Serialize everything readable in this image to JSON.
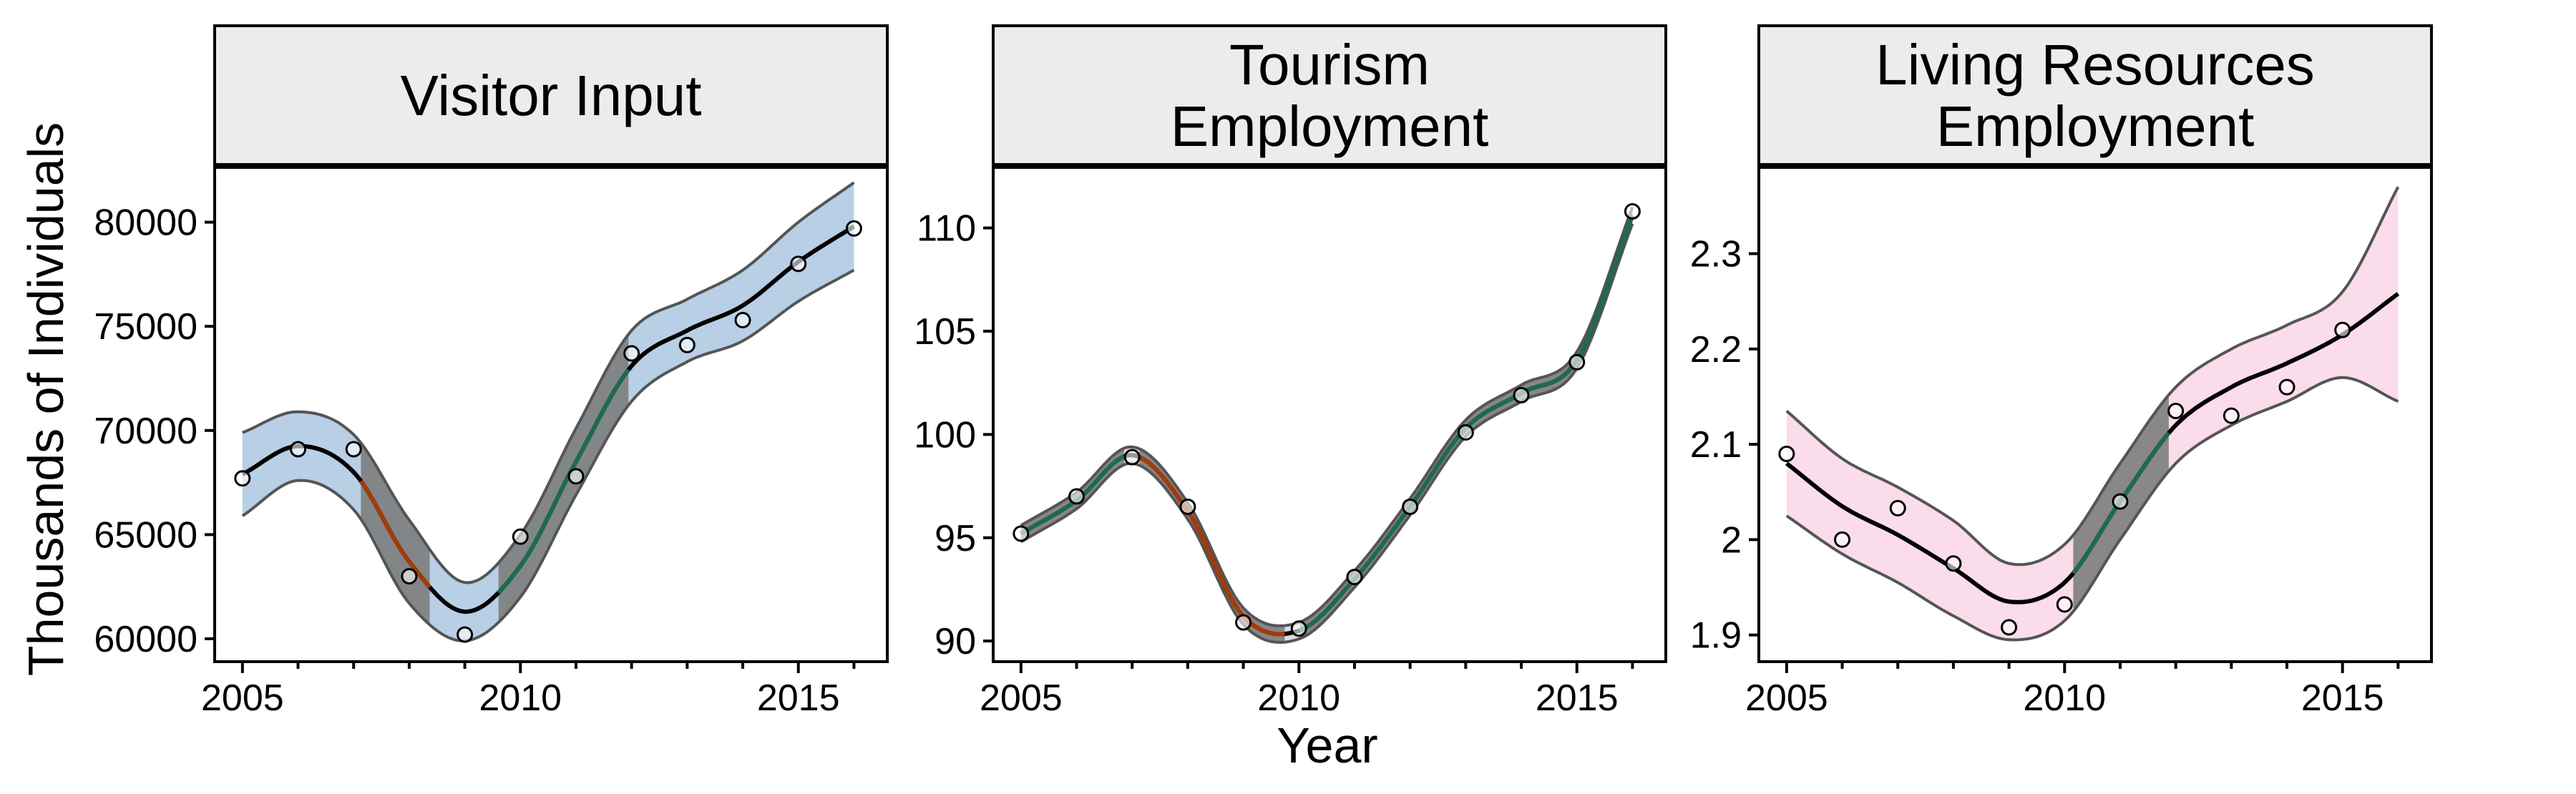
{
  "figure": {
    "xlabel": "Year",
    "ylabel": "Thousands of Individuals"
  },
  "chart_data": [
    {
      "type": "line",
      "title": "Visitor Input",
      "title_lines": [
        "Visitor Input"
      ],
      "band_color": "#b8cfe6",
      "decrease_color": "#a33b0b",
      "increase_color": "#1e6b4e",
      "xlim": [
        2004.5,
        2016.6
      ],
      "ylim": [
        58900,
        82700
      ],
      "xticks": [
        2005,
        2010,
        2015
      ],
      "yticks": [
        60000,
        65000,
        70000,
        75000,
        80000
      ],
      "x": [
        2005,
        2006,
        2007,
        2008,
        2009,
        2010,
        2011,
        2012,
        2013,
        2014,
        2015,
        2016
      ],
      "observed": [
        67700,
        69100,
        69100,
        63000,
        60200,
        64900,
        67800,
        73700,
        74100,
        75300,
        78000,
        79700
      ],
      "series": [
        {
          "name": "fit",
          "values": [
            67900,
            69250,
            68000,
            63700,
            61300,
            63500,
            68500,
            73100,
            74800,
            76000,
            78100,
            79800
          ]
        },
        {
          "name": "lower",
          "values": [
            65900,
            67600,
            66200,
            61700,
            59900,
            62000,
            66900,
            71400,
            73300,
            74300,
            76200,
            77700
          ]
        },
        {
          "name": "upper",
          "values": [
            69900,
            70900,
            69800,
            65700,
            62700,
            65000,
            70100,
            74800,
            76300,
            77700,
            80000,
            81900
          ]
        }
      ],
      "decrease_periods": [
        [
          2007.1,
          2008.4
        ]
      ],
      "increase_periods": [
        [
          2009.6,
          2012.0
        ]
      ]
    },
    {
      "type": "line",
      "title": "Tourism Employment",
      "title_lines": [
        "Tourism",
        "Employment"
      ],
      "band_color": "#dedede",
      "decrease_color": "#a33b0b",
      "increase_color": "#1e6b4e",
      "xlim": [
        2004.5,
        2016.6
      ],
      "ylim": [
        89,
        113
      ],
      "xticks": [
        2005,
        2010,
        2015
      ],
      "yticks": [
        90,
        95,
        100,
        105,
        110
      ],
      "x": [
        2005,
        2006,
        2007,
        2008,
        2009,
        2010,
        2011,
        2012,
        2013,
        2014,
        2015,
        2016
      ],
      "observed": [
        95.2,
        97.0,
        98.9,
        96.5,
        90.9,
        90.6,
        93.1,
        96.5,
        100.1,
        101.9,
        103.5,
        110.8
      ],
      "series": [
        {
          "name": "fit",
          "values": [
            95.2,
            96.8,
            99.0,
            96.3,
            91.2,
            90.5,
            93.0,
            96.5,
            100.3,
            102.0,
            103.6,
            110.6
          ]
        },
        {
          "name": "lower",
          "values": [
            94.8,
            96.4,
            98.6,
            95.9,
            90.8,
            90.1,
            92.6,
            96.1,
            99.9,
            101.6,
            103.2,
            110.2
          ]
        },
        {
          "name": "upper",
          "values": [
            95.6,
            97.2,
            99.4,
            96.7,
            91.6,
            90.9,
            93.4,
            96.9,
            100.7,
            102.4,
            104.0,
            111.0
          ]
        }
      ],
      "decrease_periods": [
        [
          2007.1,
          2009.8
        ]
      ],
      "increase_periods": [
        [
          2004.9,
          2006.9
        ],
        [
          2010.0,
          2016.1
        ]
      ]
    },
    {
      "type": "line",
      "title": "Living Resources Employment",
      "title_lines": [
        "Living Resources",
        "Employment"
      ],
      "band_color": "#fbdcea",
      "decrease_color": "#a33b0b",
      "increase_color": "#1e6b4e",
      "xlim": [
        2004.5,
        2016.6
      ],
      "ylim": [
        1.872,
        2.392
      ],
      "xticks": [
        2005,
        2010,
        2015
      ],
      "yticks": [
        1.9,
        2.0,
        2.1,
        2.2,
        2.3
      ],
      "x": [
        2005,
        2006,
        2007,
        2008,
        2009,
        2010,
        2011,
        2012,
        2013,
        2014,
        2015,
        2016
      ],
      "observed": [
        2.09,
        2.0,
        2.033,
        1.975,
        1.908,
        1.932,
        2.04,
        2.135,
        2.13,
        2.16,
        2.22
      ],
      "series": [
        {
          "name": "fit",
          "values": [
            2.08,
            2.035,
            2.005,
            1.97,
            1.935,
            1.955,
            2.04,
            2.12,
            2.16,
            2.185,
            2.215,
            2.258
          ]
        },
        {
          "name": "lower",
          "values": [
            2.025,
            1.985,
            1.955,
            1.92,
            1.895,
            1.915,
            2.0,
            2.08,
            2.12,
            2.145,
            2.17,
            2.145
          ]
        },
        {
          "name": "upper",
          "values": [
            2.135,
            2.085,
            2.055,
            2.02,
            1.975,
            1.995,
            2.08,
            2.16,
            2.2,
            2.225,
            2.26,
            2.37
          ]
        }
      ],
      "decrease_periods": [],
      "increase_periods": [
        [
          2010.1,
          2011.9
        ]
      ]
    }
  ]
}
